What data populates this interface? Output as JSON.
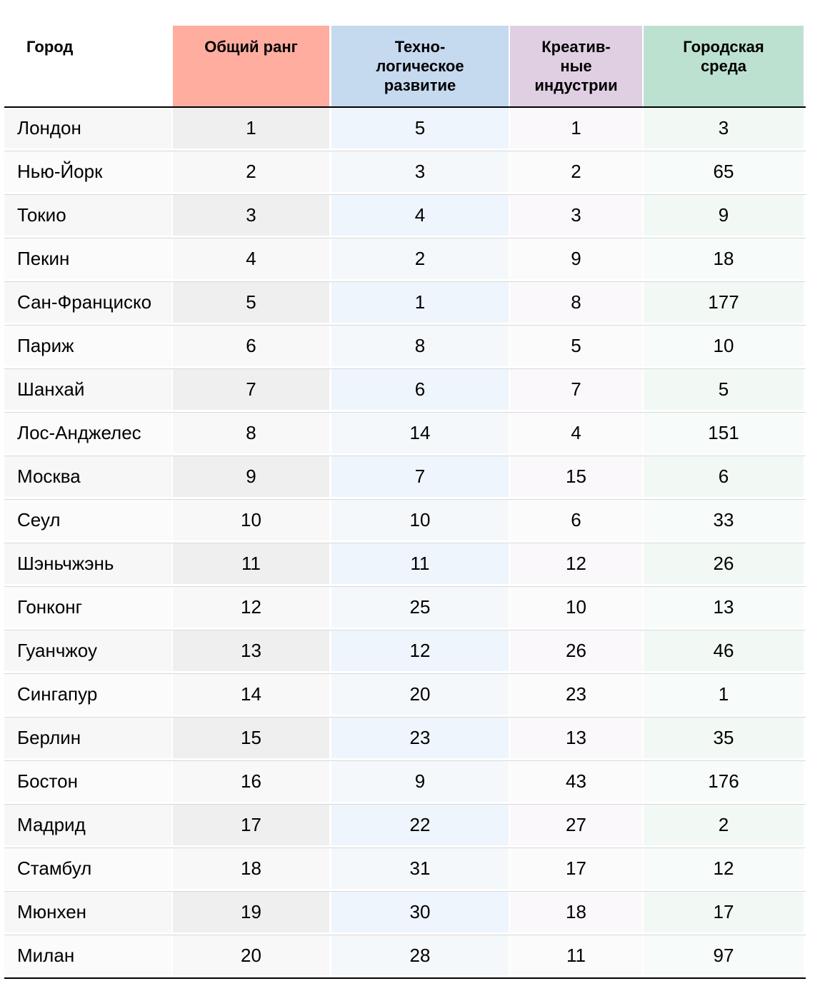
{
  "columns": [
    {
      "label": "Город"
    },
    {
      "label": "Общий ранг"
    },
    {
      "label": "Техно-\nлогическое\nразвитие"
    },
    {
      "label": "Креатив-\nные\nиндустрии"
    },
    {
      "label": "Городская\nсреда"
    }
  ],
  "colors": {
    "header": [
      "#ffffff",
      "#ffad9f",
      "#c5d9ef",
      "#e0cfe3",
      "#bde1d1"
    ],
    "body_odd": [
      "#f7f7f7",
      "#efefef",
      "#eef5fc",
      "#fbf8fb",
      "#f2f9f5"
    ],
    "body_even": [
      "#fbfbfb",
      "#f8f8f8",
      "#f5f8fb",
      "#fcfbfc",
      "#f7fbf9"
    ]
  },
  "rows": [
    [
      "Лондон",
      "1",
      "5",
      "1",
      "3"
    ],
    [
      "Нью-Йорк",
      "2",
      "3",
      "2",
      "65"
    ],
    [
      "Токио",
      "3",
      "4",
      "3",
      "9"
    ],
    [
      "Пекин",
      "4",
      "2",
      "9",
      "18"
    ],
    [
      "Сан-Франциско",
      "5",
      "1",
      "8",
      "177"
    ],
    [
      "Париж",
      "6",
      "8",
      "5",
      "10"
    ],
    [
      "Шанхай",
      "7",
      "6",
      "7",
      "5"
    ],
    [
      "Лос-Анджелес",
      "8",
      "14",
      "4",
      "151"
    ],
    [
      "Москва",
      "9",
      "7",
      "15",
      "6"
    ],
    [
      "Сеул",
      "10",
      "10",
      "6",
      "33"
    ],
    [
      "Шэньчжэнь",
      "11",
      "11",
      "12",
      "26"
    ],
    [
      "Гонконг",
      "12",
      "25",
      "10",
      "13"
    ],
    [
      "Гуанчжоу",
      "13",
      "12",
      "26",
      "46"
    ],
    [
      "Сингапур",
      "14",
      "20",
      "23",
      "1"
    ],
    [
      "Берлин",
      "15",
      "23",
      "13",
      "35"
    ],
    [
      "Бостон",
      "16",
      "9",
      "43",
      "176"
    ],
    [
      "Мадрид",
      "17",
      "22",
      "27",
      "2"
    ],
    [
      "Стамбул",
      "18",
      "31",
      "17",
      "12"
    ],
    [
      "Мюнхен",
      "19",
      "30",
      "18",
      "17"
    ],
    [
      "Милан",
      "20",
      "28",
      "11",
      "97"
    ]
  ]
}
